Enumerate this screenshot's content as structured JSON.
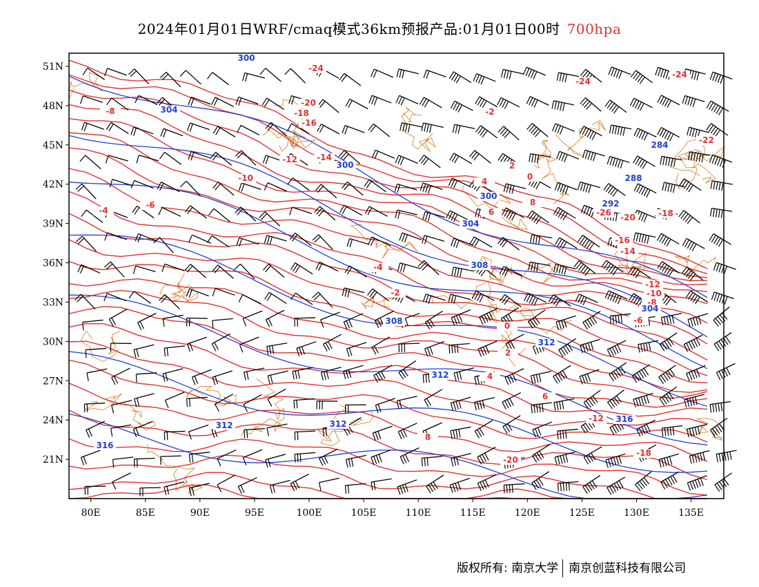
{
  "title": {
    "main": "2024年01月01日WRF/cmaq模式36km预报产品:01月01日00时",
    "level": "700hpa"
  },
  "axes": {
    "lon_ticks": [
      "80E",
      "85E",
      "90E",
      "95E",
      "100E",
      "105E",
      "110E",
      "115E",
      "120E",
      "125E",
      "130E",
      "135E"
    ],
    "lon_values": [
      80,
      85,
      90,
      95,
      100,
      105,
      110,
      115,
      120,
      125,
      130,
      135
    ],
    "lat_ticks": [
      "51N",
      "48N",
      "45N",
      "42N",
      "39N",
      "36N",
      "33N",
      "30N",
      "27N",
      "24N",
      "21N"
    ],
    "lat_values": [
      51,
      48,
      45,
      42,
      39,
      36,
      33,
      30,
      27,
      24,
      21
    ],
    "lon_range": [
      78,
      138
    ],
    "lat_range": [
      18,
      52
    ]
  },
  "colors": {
    "temperature": "#e0312f",
    "height": "#1f3fd6",
    "border": "#d8893a",
    "barb": "#000000"
  },
  "temperature_labels": [
    "-24",
    "-24",
    "-24",
    "-22",
    "-20",
    "-18",
    "-16",
    "-14",
    "-12",
    "-10",
    "-8",
    "-6",
    "-4",
    "-2",
    "0",
    "2",
    "4",
    "6",
    "8",
    "-26",
    "-20",
    "-18",
    "-16",
    "-14",
    "-12",
    "-10",
    "-8",
    "-6",
    "-4",
    "-2",
    "0",
    "2",
    "4",
    "6",
    "8",
    "-20",
    "-18",
    "-12"
  ],
  "height_labels": [
    "300",
    "304",
    "300",
    "284",
    "288",
    "300",
    "304",
    "308",
    "308",
    "312",
    "312",
    "312",
    "312",
    "316",
    "316",
    "304",
    "292"
  ],
  "footer": {
    "copyright": "版权所有: 南京大学",
    "company": "南京创蓝科技有限公司"
  }
}
